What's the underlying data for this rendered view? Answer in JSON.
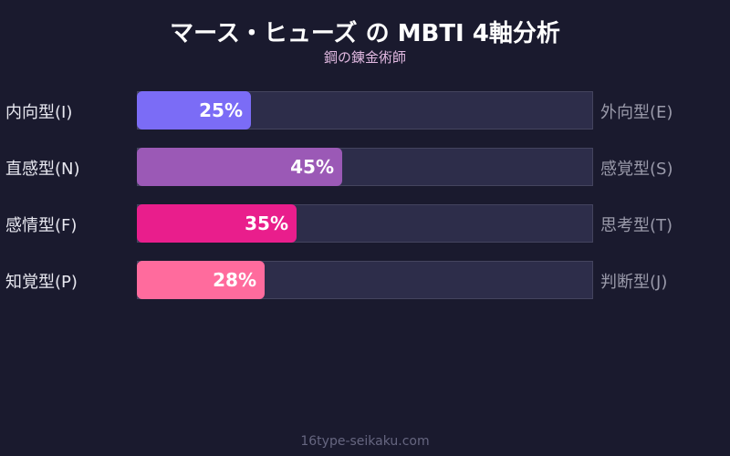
{
  "chart_data": {
    "type": "bar",
    "title": "マース・ヒューズ の MBTI 4軸分析",
    "subtitle": "鋼の錬金術師",
    "xlim": [
      0,
      100
    ],
    "rows": [
      {
        "left": "内向型(I)",
        "right": "外向型(E)",
        "value": 25,
        "label": "25%",
        "color": "#7b6cf6"
      },
      {
        "left": "直感型(N)",
        "right": "感覚型(S)",
        "value": 45,
        "label": "45%",
        "color": "#9b59b6"
      },
      {
        "left": "感情型(F)",
        "right": "思考型(T)",
        "value": 35,
        "label": "35%",
        "color": "#e91e8c"
      },
      {
        "left": "知覚型(P)",
        "right": "判断型(J)",
        "value": 28,
        "label": "28%",
        "color": "#ff6b9d"
      }
    ]
  },
  "footer": "16type-seikaku.com"
}
